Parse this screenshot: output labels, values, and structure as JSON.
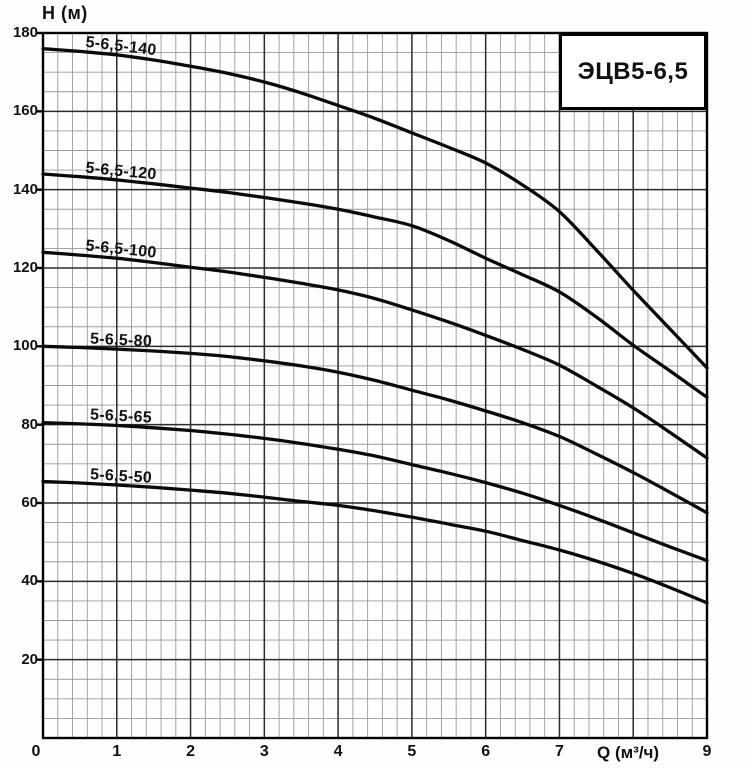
{
  "title_box": {
    "label": "ЭЦВ5-6,5"
  },
  "colors": {
    "curve": "#0a0a0a",
    "grid_minor": "#9a9a9a",
    "grid_major": "#2b2b2b",
    "border": "#000000",
    "text": "#111111",
    "background": "#ffffff"
  },
  "chart_data": {
    "type": "line",
    "title": "ЭЦВ5-6,5",
    "xlabel": "Q (м³/ч)",
    "ylabel": "H (м)",
    "xlim": [
      0,
      9
    ],
    "ylim": [
      0,
      180
    ],
    "x_major_step": 1,
    "x_minor_step": 0.2,
    "y_major_step": 20,
    "y_minor_step": 5,
    "grid": true,
    "legend_position": "labels-on-curves",
    "y_ticks": [
      180,
      160,
      140,
      120,
      100,
      80,
      60,
      40,
      20
    ],
    "x_ticks": [
      0,
      1,
      2,
      3,
      4,
      5,
      6,
      7,
      9
    ],
    "x_label_position": 7.93,
    "x": [
      0,
      0.5,
      1,
      1.5,
      2,
      2.5,
      3,
      3.5,
      4,
      4.5,
      5,
      5.5,
      6,
      6.5,
      7,
      7.5,
      8,
      8.5,
      9
    ],
    "series": [
      {
        "name": "5-6,5-140",
        "values": [
          176,
          175.3,
          174.4,
          173.1,
          171.5,
          169.7,
          167.5,
          164.7,
          161.5,
          158.2,
          154.5,
          150.8,
          146.8,
          141.2,
          134.4,
          124.6,
          114.3,
          104.4,
          94.5
        ]
      },
      {
        "name": "5-6,5-120",
        "values": [
          144,
          143.3,
          142.5,
          141.5,
          140.4,
          139.3,
          138,
          136.6,
          135,
          133,
          130.8,
          127,
          122.5,
          118.3,
          113.9,
          107.5,
          100.3,
          93.7,
          87
        ]
      },
      {
        "name": "5-6,5-100",
        "values": [
          124,
          123.3,
          122.5,
          121.4,
          120.2,
          119,
          117.6,
          116.1,
          114.4,
          112.2,
          109.3,
          106.2,
          102.8,
          99.2,
          95.2,
          89.9,
          84.3,
          78,
          71.5
        ]
      },
      {
        "name": "5-6,5-80",
        "values": [
          100,
          99.7,
          99.3,
          98.8,
          98.2,
          97.4,
          96.3,
          95,
          93.4,
          91.3,
          88.8,
          86.3,
          83.5,
          80.5,
          77,
          72.5,
          67.8,
          62.7,
          57.5
        ]
      },
      {
        "name": "5-6,5-65",
        "values": [
          80.5,
          80.2,
          79.8,
          79.2,
          78.5,
          77.6,
          76.5,
          75.2,
          73.7,
          72,
          69.8,
          67.6,
          65.2,
          62.5,
          59.4,
          56,
          52.4,
          48.8,
          45.3
        ]
      },
      {
        "name": "5-6,5-50",
        "values": [
          65.5,
          65.1,
          64.6,
          64,
          63.3,
          62.5,
          61.5,
          60.4,
          59.4,
          58,
          56.4,
          54.6,
          52.8,
          50.4,
          48,
          45.2,
          42,
          38.4,
          34.5
        ]
      }
    ]
  }
}
